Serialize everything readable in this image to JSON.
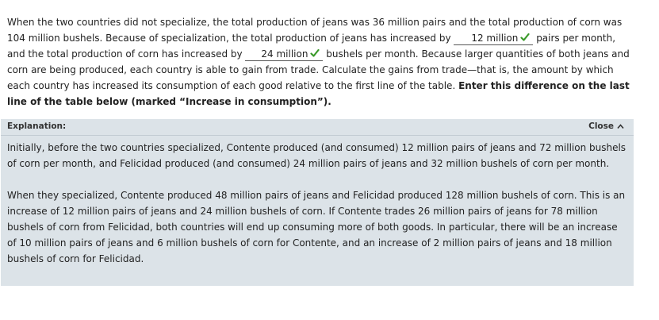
{
  "question": {
    "seg1": "When the two countries did not specialize, the total production of jeans was 36 million pairs and the total production of corn was 104 million bushels. Because of specialization, the total production of jeans has increased by ",
    "answer1": "12 million",
    "seg2": " pairs per month, and the total production of corn has increased by ",
    "answer2": "24 million",
    "seg3": " bushels per month. Because larger quantities of both jeans and corn are being produced, each country is able to gain from trade.  Calculate the gains from trade—that is, the amount by which each country has increased its consumption of each good relative to the first line of the table. ",
    "bold_instruction": "Enter this difference on the last line of the table below (marked “Increase in consumption”).",
    "check_color": "#3a9a2a"
  },
  "explanation": {
    "title": "Explanation:",
    "close_label": "Close",
    "paragraph1": "Initially, before the two countries specialized, Contente produced (and consumed) 12 million pairs of jeans and 72 million bushels of corn per month, and Felicidad produced (and consumed) 24 million pairs of jeans and 32 million bushels of corn per month.",
    "paragraph2": "When they specialized, Contente produced 48 million pairs of jeans and Felicidad produced 128 million bushels of corn. This is an increase of 12 million pairs of jeans and 24 million bushels of corn. If Contente trades 26 million pairs of jeans for 78 million bushels of corn from Felicidad, both countries will end up consuming more of both goods. In particular, there will be an increase of 10 million pairs of jeans and 6 million bushels of corn for Contente, and an increase of 2 million pairs of jeans and 18 million bushels of corn for Felicidad.",
    "background": "#dce3e8"
  }
}
